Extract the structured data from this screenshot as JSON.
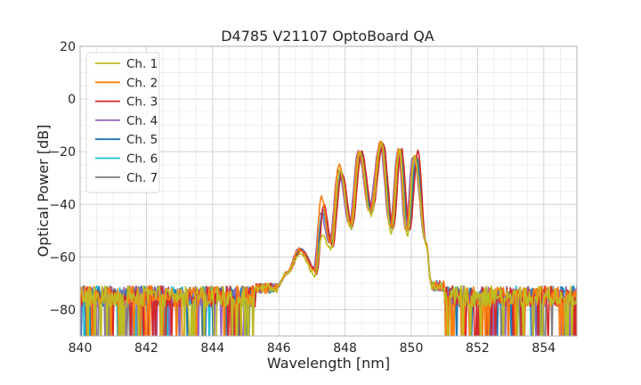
{
  "chart_data": {
    "type": "line",
    "title": "D4785 V21107 OptoBoard QA",
    "xlabel": "Wavelength [nm]",
    "ylabel": "Optical Power [dB]",
    "xlim": [
      840,
      855
    ],
    "ylim": [
      -90,
      20
    ],
    "x_ticks": [
      840,
      842,
      844,
      846,
      848,
      850,
      852,
      854
    ],
    "y_ticks": [
      -80,
      -60,
      -40,
      -20,
      0,
      20
    ],
    "x_tick_labels": [
      "840",
      "842",
      "844",
      "846",
      "848",
      "850",
      "852",
      "854"
    ],
    "y_tick_labels": [
      "−80",
      "−60",
      "−40",
      "−20",
      "0",
      "20"
    ],
    "grid": true,
    "minor_grid": true,
    "legend_position": "upper-left",
    "noise_floor_db": -77,
    "series": [
      {
        "name": "Ch. 1",
        "color": "#bcbd22",
        "peaks": [
          [
            846.65,
            -58.5
          ],
          [
            847.3,
            -52
          ],
          [
            847.85,
            -27
          ],
          [
            848.45,
            -20.5
          ],
          [
            849.1,
            -17
          ],
          [
            849.65,
            -19.5
          ],
          [
            850.1,
            -22
          ]
        ],
        "dips": [
          [
            847.1,
            -67
          ],
          [
            847.58,
            -57
          ],
          [
            848.18,
            -49
          ],
          [
            848.78,
            -44
          ],
          [
            849.4,
            -51
          ],
          [
            849.88,
            -52
          ]
        ]
      },
      {
        "name": "Ch. 2",
        "color": "#ff7f0e",
        "peaks": [
          [
            846.62,
            -57
          ],
          [
            847.28,
            -37
          ],
          [
            847.82,
            -25
          ],
          [
            848.42,
            -20
          ],
          [
            849.07,
            -16
          ],
          [
            849.62,
            -19
          ],
          [
            850.08,
            -22
          ]
        ],
        "dips": [
          [
            847.08,
            -65
          ],
          [
            847.55,
            -55
          ],
          [
            848.15,
            -48
          ],
          [
            848.75,
            -43
          ],
          [
            849.37,
            -49
          ],
          [
            849.85,
            -50
          ]
        ]
      },
      {
        "name": "Ch. 3",
        "color": "#d62728",
        "peaks": [
          [
            846.7,
            -57.5
          ],
          [
            847.35,
            -40
          ],
          [
            847.9,
            -28
          ],
          [
            848.5,
            -20
          ],
          [
            849.15,
            -17
          ],
          [
            849.7,
            -19
          ],
          [
            850.2,
            -20
          ]
        ],
        "dips": [
          [
            847.15,
            -66
          ],
          [
            847.62,
            -56
          ],
          [
            848.22,
            -48
          ],
          [
            848.82,
            -42
          ],
          [
            849.45,
            -49
          ],
          [
            849.95,
            -50
          ]
        ]
      },
      {
        "name": "Ch. 4",
        "color": "#9467bd",
        "peaks": [
          [
            846.6,
            -57
          ],
          [
            847.25,
            -43
          ],
          [
            847.8,
            -27
          ],
          [
            848.4,
            -20
          ],
          [
            849.05,
            -17
          ],
          [
            849.6,
            -19
          ],
          [
            850.05,
            -22
          ]
        ],
        "dips": [
          [
            847.05,
            -64
          ],
          [
            847.52,
            -54
          ],
          [
            848.12,
            -47
          ],
          [
            848.72,
            -42
          ],
          [
            849.35,
            -48
          ],
          [
            849.82,
            -49
          ]
        ]
      },
      {
        "name": "Ch. 5",
        "color": "#1f77b4",
        "peaks": [
          [
            846.66,
            -57
          ],
          [
            847.32,
            -43
          ],
          [
            847.87,
            -29
          ],
          [
            848.47,
            -21
          ],
          [
            849.12,
            -18
          ],
          [
            849.67,
            -19
          ],
          [
            850.15,
            -23
          ]
        ],
        "dips": [
          [
            847.12,
            -65
          ],
          [
            847.6,
            -55
          ],
          [
            848.2,
            -49
          ],
          [
            848.8,
            -43
          ],
          [
            849.42,
            -49
          ],
          [
            849.9,
            -50
          ]
        ]
      },
      {
        "name": "Ch. 6",
        "color": "#17becf",
        "peaks": [
          [
            846.64,
            -57.5
          ],
          [
            847.3,
            -44
          ],
          [
            847.85,
            -30
          ],
          [
            848.45,
            -21
          ],
          [
            849.1,
            -18
          ],
          [
            849.65,
            -19
          ],
          [
            850.12,
            -24
          ]
        ],
        "dips": [
          [
            847.1,
            -64
          ],
          [
            847.57,
            -54
          ],
          [
            848.17,
            -48
          ],
          [
            848.77,
            -42
          ],
          [
            849.4,
            -48
          ],
          [
            849.87,
            -49
          ]
        ]
      },
      {
        "name": "Ch. 7",
        "color": "#7f7f7f",
        "peaks": [
          [
            846.68,
            -57
          ],
          [
            847.33,
            -42
          ],
          [
            847.88,
            -28
          ],
          [
            848.48,
            -20
          ],
          [
            849.13,
            -17
          ],
          [
            849.68,
            -19
          ],
          [
            850.17,
            -22
          ]
        ],
        "dips": [
          [
            847.13,
            -65
          ],
          [
            847.6,
            -55
          ],
          [
            848.2,
            -48
          ],
          [
            848.8,
            -43
          ],
          [
            849.43,
            -49
          ],
          [
            849.9,
            -50
          ]
        ]
      }
    ]
  }
}
